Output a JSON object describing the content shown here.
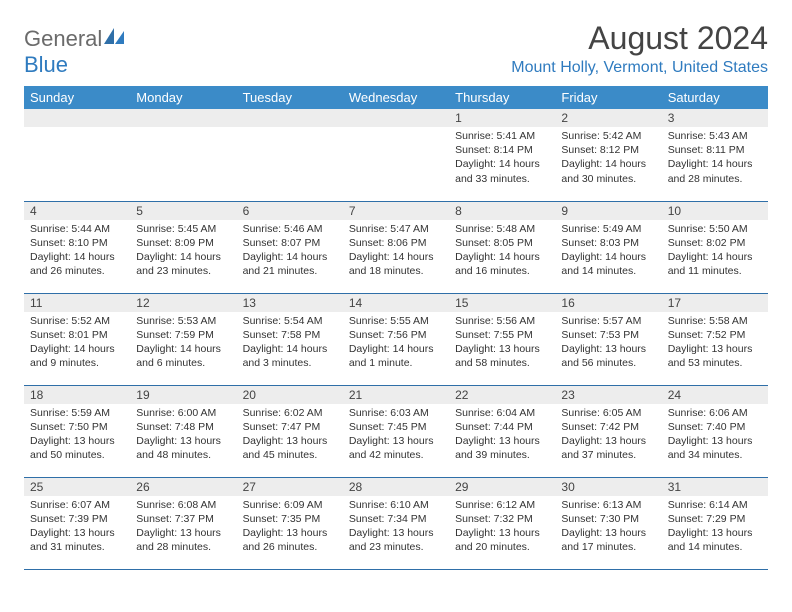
{
  "logo": {
    "word1": "General",
    "word2": "Blue"
  },
  "title": "August 2024",
  "location": "Mount Holly, Vermont, United States",
  "colors": {
    "header_bg": "#3b8bc8",
    "header_text": "#ffffff",
    "daynum_bg": "#ededed",
    "row_divider": "#2f6fa8",
    "logo_gray": "#6b6b6b",
    "logo_blue": "#2f7bbf",
    "location_color": "#2f7bbf",
    "title_color": "#444444",
    "body_text": "#333333",
    "page_bg": "#ffffff"
  },
  "weekdays": [
    "Sunday",
    "Monday",
    "Tuesday",
    "Wednesday",
    "Thursday",
    "Friday",
    "Saturday"
  ],
  "weeks": [
    [
      null,
      null,
      null,
      null,
      {
        "n": "1",
        "sr": "5:41 AM",
        "ss": "8:14 PM",
        "dl": "14 hours and 33 minutes."
      },
      {
        "n": "2",
        "sr": "5:42 AM",
        "ss": "8:12 PM",
        "dl": "14 hours and 30 minutes."
      },
      {
        "n": "3",
        "sr": "5:43 AM",
        "ss": "8:11 PM",
        "dl": "14 hours and 28 minutes."
      }
    ],
    [
      {
        "n": "4",
        "sr": "5:44 AM",
        "ss": "8:10 PM",
        "dl": "14 hours and 26 minutes."
      },
      {
        "n": "5",
        "sr": "5:45 AM",
        "ss": "8:09 PM",
        "dl": "14 hours and 23 minutes."
      },
      {
        "n": "6",
        "sr": "5:46 AM",
        "ss": "8:07 PM",
        "dl": "14 hours and 21 minutes."
      },
      {
        "n": "7",
        "sr": "5:47 AM",
        "ss": "8:06 PM",
        "dl": "14 hours and 18 minutes."
      },
      {
        "n": "8",
        "sr": "5:48 AM",
        "ss": "8:05 PM",
        "dl": "14 hours and 16 minutes."
      },
      {
        "n": "9",
        "sr": "5:49 AM",
        "ss": "8:03 PM",
        "dl": "14 hours and 14 minutes."
      },
      {
        "n": "10",
        "sr": "5:50 AM",
        "ss": "8:02 PM",
        "dl": "14 hours and 11 minutes."
      }
    ],
    [
      {
        "n": "11",
        "sr": "5:52 AM",
        "ss": "8:01 PM",
        "dl": "14 hours and 9 minutes."
      },
      {
        "n": "12",
        "sr": "5:53 AM",
        "ss": "7:59 PM",
        "dl": "14 hours and 6 minutes."
      },
      {
        "n": "13",
        "sr": "5:54 AM",
        "ss": "7:58 PM",
        "dl": "14 hours and 3 minutes."
      },
      {
        "n": "14",
        "sr": "5:55 AM",
        "ss": "7:56 PM",
        "dl": "14 hours and 1 minute."
      },
      {
        "n": "15",
        "sr": "5:56 AM",
        "ss": "7:55 PM",
        "dl": "13 hours and 58 minutes."
      },
      {
        "n": "16",
        "sr": "5:57 AM",
        "ss": "7:53 PM",
        "dl": "13 hours and 56 minutes."
      },
      {
        "n": "17",
        "sr": "5:58 AM",
        "ss": "7:52 PM",
        "dl": "13 hours and 53 minutes."
      }
    ],
    [
      {
        "n": "18",
        "sr": "5:59 AM",
        "ss": "7:50 PM",
        "dl": "13 hours and 50 minutes."
      },
      {
        "n": "19",
        "sr": "6:00 AM",
        "ss": "7:48 PM",
        "dl": "13 hours and 48 minutes."
      },
      {
        "n": "20",
        "sr": "6:02 AM",
        "ss": "7:47 PM",
        "dl": "13 hours and 45 minutes."
      },
      {
        "n": "21",
        "sr": "6:03 AM",
        "ss": "7:45 PM",
        "dl": "13 hours and 42 minutes."
      },
      {
        "n": "22",
        "sr": "6:04 AM",
        "ss": "7:44 PM",
        "dl": "13 hours and 39 minutes."
      },
      {
        "n": "23",
        "sr": "6:05 AM",
        "ss": "7:42 PM",
        "dl": "13 hours and 37 minutes."
      },
      {
        "n": "24",
        "sr": "6:06 AM",
        "ss": "7:40 PM",
        "dl": "13 hours and 34 minutes."
      }
    ],
    [
      {
        "n": "25",
        "sr": "6:07 AM",
        "ss": "7:39 PM",
        "dl": "13 hours and 31 minutes."
      },
      {
        "n": "26",
        "sr": "6:08 AM",
        "ss": "7:37 PM",
        "dl": "13 hours and 28 minutes."
      },
      {
        "n": "27",
        "sr": "6:09 AM",
        "ss": "7:35 PM",
        "dl": "13 hours and 26 minutes."
      },
      {
        "n": "28",
        "sr": "6:10 AM",
        "ss": "7:34 PM",
        "dl": "13 hours and 23 minutes."
      },
      {
        "n": "29",
        "sr": "6:12 AM",
        "ss": "7:32 PM",
        "dl": "13 hours and 20 minutes."
      },
      {
        "n": "30",
        "sr": "6:13 AM",
        "ss": "7:30 PM",
        "dl": "13 hours and 17 minutes."
      },
      {
        "n": "31",
        "sr": "6:14 AM",
        "ss": "7:29 PM",
        "dl": "13 hours and 14 minutes."
      }
    ]
  ],
  "labels": {
    "sunrise": "Sunrise:",
    "sunset": "Sunset:",
    "daylight": "Daylight:"
  }
}
